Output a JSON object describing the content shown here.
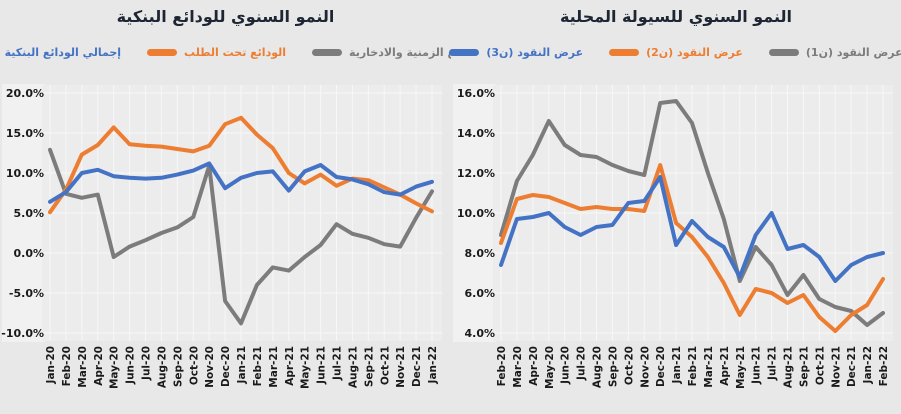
{
  "page": {
    "background": "#e8e8e8",
    "description_visible_text_language": "Arabic titles and legends, English month axis labels"
  },
  "colors": {
    "series_blue": "#4472c4",
    "series_orange": "#ed7d31",
    "series_gray": "#7c7c7c",
    "title_text": "#1e2633",
    "axis_text": "#1a1a1a",
    "gridline": "#f7f7f7",
    "plot_bg": "#ececec",
    "ylabel_strip_bg": "#f2f2f2"
  },
  "chart_data": [
    {
      "type": "line",
      "title": "النمو السنوي للودائع البنكية",
      "categories": [
        "Jan-20",
        "Feb-20",
        "Mar-20",
        "Apr-20",
        "May-20",
        "Jun-20",
        "Jul-20",
        "Aug-20",
        "Sep-20",
        "Oct-20",
        "Nov-20",
        "Dec-20",
        "Jan-21",
        "Feb-21",
        "Mar-21",
        "Apr-21",
        "May-21",
        "Jun-21",
        "Jul-21",
        "Aug-21",
        "Sep-21",
        "Oct-21",
        "Nov-21",
        "Dec-21",
        "Jan-22"
      ],
      "series": [
        {
          "name": "إجمالي الودائع البنكية",
          "color": "#4472c4",
          "values": [
            6.4,
            7.6,
            10.0,
            10.4,
            9.6,
            9.4,
            9.3,
            9.4,
            9.8,
            10.3,
            11.2,
            8.1,
            9.4,
            10.0,
            10.2,
            7.8,
            10.2,
            11.0,
            9.5,
            9.2,
            8.6,
            7.6,
            7.3,
            8.3,
            8.9
          ]
        },
        {
          "name": "الودائع تحت الطلب",
          "color": "#ed7d31",
          "values": [
            5.1,
            7.9,
            12.3,
            13.5,
            15.7,
            13.6,
            13.4,
            13.3,
            13.0,
            12.7,
            13.4,
            16.1,
            16.9,
            14.8,
            13.1,
            10.0,
            8.7,
            9.8,
            8.4,
            9.3,
            9.1,
            8.2,
            7.3,
            6.2,
            5.2
          ]
        },
        {
          "name": "الودائع الزمنية والادخارية",
          "color": "#7c7c7c",
          "values": [
            12.9,
            7.4,
            6.9,
            7.3,
            -0.5,
            0.8,
            1.6,
            2.5,
            3.2,
            4.5,
            10.9,
            -6.0,
            -8.8,
            -4.0,
            -1.8,
            -2.2,
            -0.5,
            1.0,
            3.6,
            2.4,
            1.9,
            1.1,
            0.8,
            4.4,
            7.7
          ]
        }
      ],
      "ylim": [
        -10,
        20
      ],
      "yticks": [
        20,
        15,
        10,
        5,
        0,
        -5,
        -10
      ],
      "ytick_labels": [
        "20.0%",
        "15.0%",
        "10.0%",
        "5.0%",
        "0.0%",
        "-5.0%",
        "-10.0%"
      ],
      "grid": true,
      "legend_position": "top",
      "x_label_rotation_degrees": 90
    },
    {
      "type": "line",
      "title": "النمو السنوي للسيولة المحلية",
      "categories": [
        "Feb-20",
        "Mar-20",
        "Apr-20",
        "May-20",
        "Jun-20",
        "Jul-20",
        "Aug-20",
        "Sep-20",
        "Oct-20",
        "Nov-20",
        "Dec-20",
        "Jan-21",
        "Feb-21",
        "Mar-21",
        "Apr-21",
        "May-21",
        "Jun-21",
        "Jul-21",
        "Aug-21",
        "Sep-21",
        "Oct-21",
        "Nov-21",
        "Dec-21",
        "Jan-22",
        "Feb-22"
      ],
      "series": [
        {
          "name": "عرض النقود (ن3)",
          "color": "#4472c4",
          "values": [
            7.4,
            9.7,
            9.8,
            10.0,
            9.3,
            8.9,
            9.3,
            9.4,
            10.5,
            10.6,
            11.8,
            8.4,
            9.6,
            8.8,
            8.3,
            6.8,
            8.9,
            10.0,
            8.2,
            8.4,
            7.8,
            6.6,
            7.4,
            7.8,
            8.0
          ]
        },
        {
          "name": "عرض النقود (ن2)",
          "color": "#ed7d31",
          "values": [
            8.5,
            10.7,
            10.9,
            10.8,
            10.5,
            10.2,
            10.3,
            10.2,
            10.2,
            10.1,
            12.4,
            9.5,
            8.8,
            7.8,
            6.5,
            4.9,
            6.2,
            6.0,
            5.5,
            5.9,
            4.8,
            4.1,
            4.9,
            5.4,
            6.7
          ]
        },
        {
          "name": "عرض النقود (ن1)",
          "color": "#7c7c7c",
          "values": [
            8.9,
            11.6,
            12.9,
            14.6,
            13.4,
            12.9,
            12.8,
            12.4,
            12.1,
            11.9,
            15.5,
            15.6,
            14.5,
            12.0,
            9.7,
            6.6,
            8.3,
            7.4,
            5.9,
            6.9,
            5.7,
            5.3,
            5.1,
            4.4,
            5.0
          ]
        }
      ],
      "ylim": [
        4,
        16
      ],
      "yticks": [
        16,
        14,
        12,
        10,
        8,
        6,
        4
      ],
      "ytick_labels": [
        "16.0%",
        "14.0%",
        "12.0%",
        "10.0%",
        "8.0%",
        "6.0%",
        "4.0%"
      ],
      "grid": true,
      "legend_position": "top",
      "x_label_rotation_degrees": 90
    }
  ]
}
